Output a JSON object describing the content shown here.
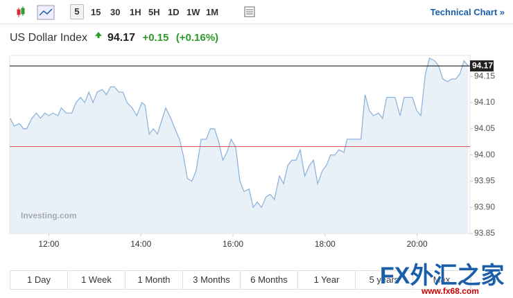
{
  "toolbar": {
    "intervals": [
      "5",
      "15",
      "30",
      "1H",
      "5H",
      "1D",
      "1W",
      "1M"
    ],
    "link": "Technical Chart »"
  },
  "header": {
    "name": "US Dollar Index",
    "price": "94.17",
    "change": "+0.15",
    "change_pct": "(+0.16%)"
  },
  "chart_data": {
    "type": "line",
    "watermark": "Investing.com",
    "x": [
      11.16,
      11.25,
      11.36,
      11.45,
      11.52,
      11.63,
      11.73,
      11.82,
      11.91,
      12.0,
      12.09,
      12.2,
      12.27,
      12.38,
      12.5,
      12.59,
      12.69,
      12.78,
      12.87,
      12.96,
      13.05,
      13.16,
      13.25,
      13.34,
      13.43,
      13.52,
      13.61,
      13.7,
      13.81,
      13.91,
      14.02,
      14.09,
      14.18,
      14.27,
      14.36,
      14.45,
      14.54,
      14.65,
      14.74,
      14.84,
      14.92,
      15.01,
      15.11,
      15.2,
      15.31,
      15.42,
      15.51,
      15.6,
      15.69,
      15.78,
      15.87,
      15.96,
      16.06,
      16.15,
      16.24,
      16.35,
      16.44,
      16.53,
      16.62,
      16.72,
      16.81,
      16.9,
      17.01,
      17.1,
      17.19,
      17.28,
      17.37,
      17.46,
      17.56,
      17.66,
      17.75,
      17.84,
      17.94,
      18.03,
      18.12,
      18.21,
      18.3,
      18.41,
      18.48,
      18.57,
      18.68,
      18.78,
      18.87,
      18.96,
      19.05,
      19.16,
      19.25,
      19.34,
      19.43,
      19.52,
      19.63,
      19.72,
      19.81,
      19.9,
      19.99,
      20.08,
      20.18,
      20.27,
      20.38,
      20.47,
      20.56,
      20.66,
      20.75,
      20.84,
      20.93,
      21.02,
      21.11
    ],
    "series": [
      {
        "color": "#8fb4dc",
        "fill": "#e8f0f8",
        "values": [
          94.07,
          94.055,
          94.06,
          94.05,
          94.05,
          94.07,
          94.08,
          94.07,
          94.08,
          94.075,
          94.08,
          94.075,
          94.09,
          94.08,
          94.08,
          94.1,
          94.11,
          94.1,
          94.12,
          94.1,
          94.12,
          94.125,
          94.115,
          94.13,
          94.13,
          94.12,
          94.12,
          94.1,
          94.09,
          94.075,
          94.1,
          94.095,
          94.04,
          94.05,
          94.04,
          94.065,
          94.09,
          94.07,
          94.05,
          94.03,
          94.0,
          93.955,
          93.95,
          93.97,
          94.03,
          94.03,
          94.05,
          94.05,
          94.025,
          93.99,
          94.005,
          94.03,
          94.015,
          93.95,
          93.93,
          93.935,
          93.9,
          93.91,
          93.9,
          93.92,
          93.925,
          93.915,
          93.96,
          93.945,
          93.98,
          93.99,
          93.99,
          94.01,
          93.96,
          93.98,
          93.99,
          93.945,
          93.97,
          93.98,
          94.0,
          94.0,
          94.01,
          94.005,
          94.03,
          94.03,
          94.03,
          94.03,
          94.115,
          94.085,
          94.075,
          94.08,
          94.07,
          94.11,
          94.11,
          94.11,
          94.075,
          94.11,
          94.11,
          94.11,
          94.085,
          94.075,
          94.155,
          94.185,
          94.18,
          94.17,
          94.145,
          94.14,
          94.145,
          94.145,
          94.155,
          94.18,
          94.17
        ]
      }
    ],
    "last_price": 94.17,
    "last_color": "#000000",
    "prev_close": 94.016,
    "prev_close_color": "#d9534f",
    "xlim": [
      11.15,
      21.15
    ],
    "xticks": [
      {
        "value": 12,
        "label": "12:00"
      },
      {
        "value": 14,
        "label": "14:00"
      },
      {
        "value": 16,
        "label": "16:00"
      },
      {
        "value": 18,
        "label": "18:00"
      },
      {
        "value": 20,
        "label": "20:00"
      }
    ],
    "ylim": [
      93.85,
      94.19
    ],
    "yticks": [
      93.85,
      {
        "value": 93.9,
        "label": "93.90"
      },
      93.95,
      {
        "value": 94.0,
        "label": "94.00"
      },
      94.05,
      {
        "value": 94.1,
        "label": "94.10"
      },
      94.15
    ]
  },
  "ranges": [
    "1 Day",
    "1 Week",
    "1 Month",
    "3 Months",
    "6 Months",
    "1 Year",
    "5 years",
    "Max"
  ],
  "watermark": {
    "brand": "FX外汇之家",
    "url": "www.fx68.com"
  }
}
